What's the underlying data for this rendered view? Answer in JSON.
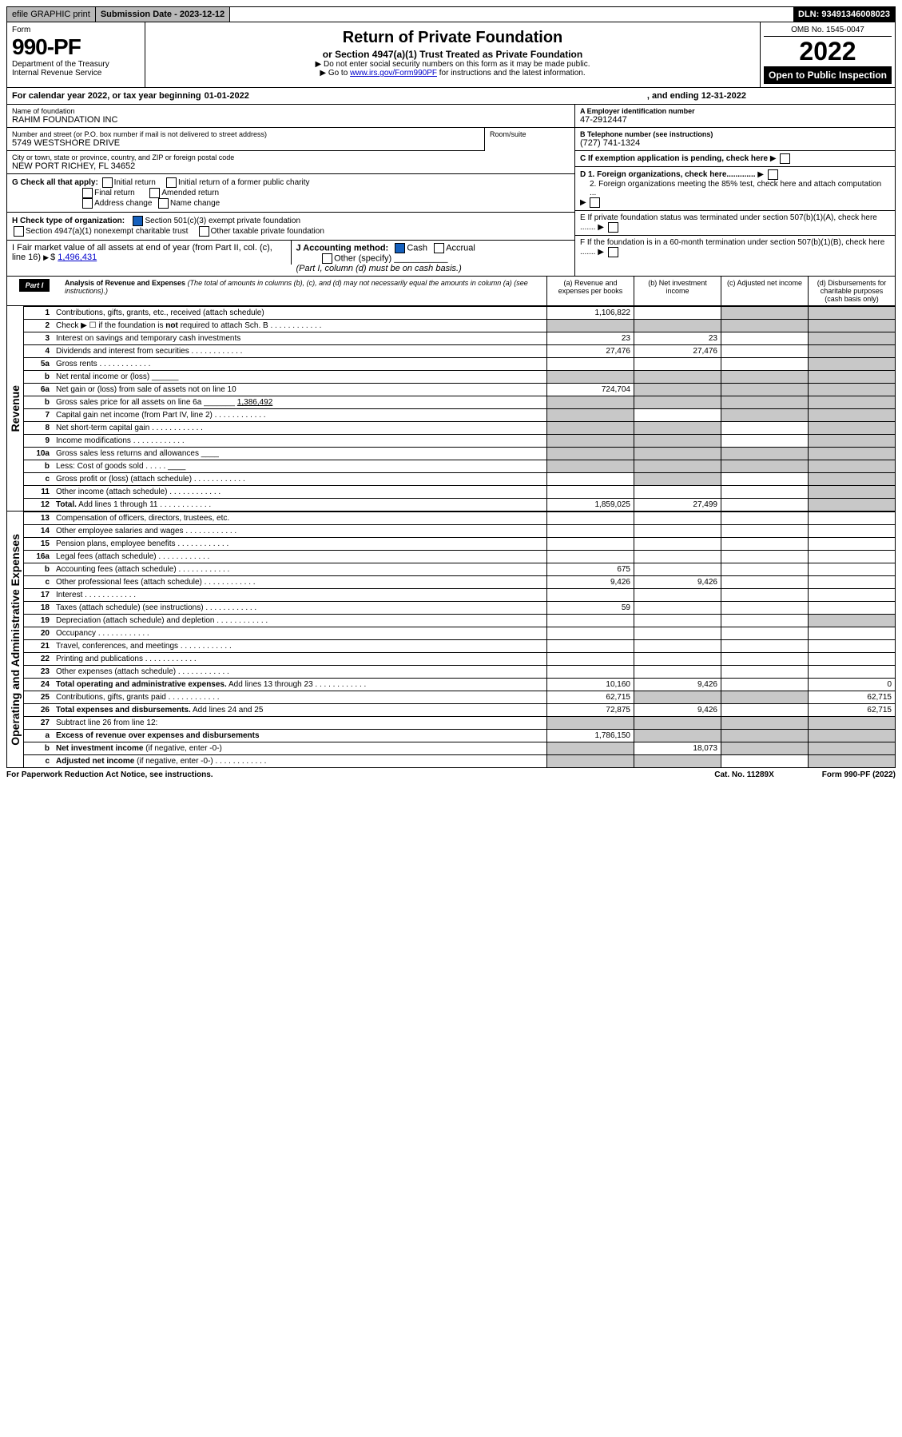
{
  "top": {
    "efile": "efile GRAPHIC print",
    "sub_label": "Submission Date - 2023-12-12",
    "dln": "DLN: 93491346008023"
  },
  "header": {
    "form_word": "Form",
    "form_no": "990-PF",
    "dept": "Department of the Treasury",
    "irs": "Internal Revenue Service",
    "title": "Return of Private Foundation",
    "subtitle": "or Section 4947(a)(1) Trust Treated as Private Foundation",
    "note1": "▶ Do not enter social security numbers on this form as it may be made public.",
    "note2_pre": "▶ Go to ",
    "note2_link": "www.irs.gov/Form990PF",
    "note2_post": " for instructions and the latest information.",
    "omb": "OMB No. 1545-0047",
    "year": "2022",
    "open": "Open to Public Inspection"
  },
  "calyear": {
    "text": "For calendar year 2022, or tax year beginning ",
    "begin": "01-01-2022",
    "mid": ", and ending ",
    "end": "12-31-2022"
  },
  "entity": {
    "name_lbl": "Name of foundation",
    "name": "RAHIM FOUNDATION INC",
    "addr_lbl": "Number and street (or P.O. box number if mail is not delivered to street address)",
    "addr": "5749 WESTSHORE DRIVE",
    "room_lbl": "Room/suite",
    "room": "",
    "city_lbl": "City or town, state or province, country, and ZIP or foreign postal code",
    "city": "NEW PORT RICHEY, FL  34652",
    "ein_lbl": "A Employer identification number",
    "ein": "47-2912447",
    "tel_lbl": "B Telephone number (see instructions)",
    "tel": "(727) 741-1324",
    "c_lbl": "C If exemption application is pending, check here",
    "d1": "D 1. Foreign organizations, check here.............",
    "d2": "2. Foreign organizations meeting the 85% test, check here and attach computation ...",
    "e": "E  If private foundation status was terminated under section 507(b)(1)(A), check here .......",
    "f": "F  If the foundation is in a 60-month termination under section 507(b)(1)(B), check here ......."
  },
  "g": {
    "lbl": "G Check all that apply:",
    "o1": "Initial return",
    "o2": "Initial return of a former public charity",
    "o3": "Final return",
    "o4": "Amended return",
    "o5": "Address change",
    "o6": "Name change"
  },
  "h": {
    "lbl": "H Check type of organization:",
    "o1": "Section 501(c)(3) exempt private foundation",
    "o2": "Section 4947(a)(1) nonexempt charitable trust",
    "o3": "Other taxable private foundation"
  },
  "i": {
    "lbl": "I Fair market value of all assets at end of year (from Part II, col. (c), line 16)",
    "val": "1,496,431"
  },
  "j": {
    "lbl": "J Accounting method:",
    "o1": "Cash",
    "o2": "Accrual",
    "o3": "Other (specify)",
    "note": "(Part I, column (d) must be on cash basis.)"
  },
  "part1": {
    "hdr": "Part I",
    "title": "Analysis of Revenue and Expenses",
    "title_note": " (The total of amounts in columns (b), (c), and (d) may not necessarily equal the amounts in column (a) (see instructions).)",
    "col_a": "(a) Revenue and expenses per books",
    "col_b": "(b) Net investment income",
    "col_c": "(c) Adjusted net income",
    "col_d": "(d) Disbursements for charitable purposes (cash basis only)"
  },
  "side_rev": "Revenue",
  "side_exp": "Operating and Administrative Expenses",
  "rows": [
    {
      "n": "1",
      "t": "Contributions, gifts, grants, etc., received (attach schedule)",
      "a": "1,106,822",
      "b": "",
      "c": "s",
      "d": "s"
    },
    {
      "n": "2",
      "t": "Check ▶ ☐ if the foundation is <b>not</b> required to attach Sch. B",
      "a": "s",
      "b": "s",
      "c": "s",
      "d": "s",
      "dotted": true
    },
    {
      "n": "3",
      "t": "Interest on savings and temporary cash investments",
      "a": "23",
      "b": "23",
      "c": "",
      "d": "s"
    },
    {
      "n": "4",
      "t": "Dividends and interest from securities",
      "a": "27,476",
      "b": "27,476",
      "c": "",
      "d": "s",
      "dotted": true
    },
    {
      "n": "5a",
      "t": "Gross rents",
      "a": "",
      "b": "",
      "c": "",
      "d": "s",
      "dotted": true
    },
    {
      "n": "b",
      "t": "Net rental income or (loss) ______",
      "a": "s",
      "b": "s",
      "c": "s",
      "d": "s"
    },
    {
      "n": "6a",
      "t": "Net gain or (loss) from sale of assets not on line 10",
      "a": "724,704",
      "b": "s",
      "c": "s",
      "d": "s"
    },
    {
      "n": "b",
      "t": "Gross sales price for all assets on line 6a _______ <u>1,386,492</u>",
      "a": "s",
      "b": "s",
      "c": "s",
      "d": "s"
    },
    {
      "n": "7",
      "t": "Capital gain net income (from Part IV, line 2)",
      "a": "s",
      "b": "",
      "c": "s",
      "d": "s",
      "dotted": true
    },
    {
      "n": "8",
      "t": "Net short-term capital gain",
      "a": "s",
      "b": "s",
      "c": "",
      "d": "s",
      "dotted": true
    },
    {
      "n": "9",
      "t": "Income modifications",
      "a": "s",
      "b": "s",
      "c": "",
      "d": "s",
      "dotted": true
    },
    {
      "n": "10a",
      "t": "Gross sales less returns and allowances ____",
      "a": "s",
      "b": "s",
      "c": "s",
      "d": "s"
    },
    {
      "n": "b",
      "t": "Less: Cost of goods sold    .  .  .  .  . ____",
      "a": "s",
      "b": "s",
      "c": "s",
      "d": "s"
    },
    {
      "n": "c",
      "t": "Gross profit or (loss) (attach schedule)",
      "a": "",
      "b": "s",
      "c": "",
      "d": "s",
      "dotted": true
    },
    {
      "n": "11",
      "t": "Other income (attach schedule)",
      "a": "",
      "b": "",
      "c": "",
      "d": "s",
      "dotted": true
    },
    {
      "n": "12",
      "t": "<b>Total.</b> Add lines 1 through 11",
      "a": "1,859,025",
      "b": "27,499",
      "c": "",
      "d": "s",
      "dotted": true
    }
  ],
  "exp_rows": [
    {
      "n": "13",
      "t": "Compensation of officers, directors, trustees, etc.",
      "a": "",
      "b": "",
      "c": "",
      "d": ""
    },
    {
      "n": "14",
      "t": "Other employee salaries and wages",
      "a": "",
      "b": "",
      "c": "",
      "d": "",
      "dotted": true
    },
    {
      "n": "15",
      "t": "Pension plans, employee benefits",
      "a": "",
      "b": "",
      "c": "",
      "d": "",
      "dotted": true
    },
    {
      "n": "16a",
      "t": "Legal fees (attach schedule)",
      "a": "",
      "b": "",
      "c": "",
      "d": "",
      "dotted": true
    },
    {
      "n": "b",
      "t": "Accounting fees (attach schedule)",
      "a": "675",
      "b": "",
      "c": "",
      "d": "",
      "dotted": true
    },
    {
      "n": "c",
      "t": "Other professional fees (attach schedule)",
      "a": "9,426",
      "b": "9,426",
      "c": "",
      "d": "",
      "dotted": true
    },
    {
      "n": "17",
      "t": "Interest",
      "a": "",
      "b": "",
      "c": "",
      "d": "",
      "dotted": true
    },
    {
      "n": "18",
      "t": "Taxes (attach schedule) (see instructions)",
      "a": "59",
      "b": "",
      "c": "",
      "d": "",
      "dotted": true
    },
    {
      "n": "19",
      "t": "Depreciation (attach schedule) and depletion",
      "a": "",
      "b": "",
      "c": "",
      "d": "s",
      "dotted": true
    },
    {
      "n": "20",
      "t": "Occupancy",
      "a": "",
      "b": "",
      "c": "",
      "d": "",
      "dotted": true
    },
    {
      "n": "21",
      "t": "Travel, conferences, and meetings",
      "a": "",
      "b": "",
      "c": "",
      "d": "",
      "dotted": true
    },
    {
      "n": "22",
      "t": "Printing and publications",
      "a": "",
      "b": "",
      "c": "",
      "d": "",
      "dotted": true
    },
    {
      "n": "23",
      "t": "Other expenses (attach schedule)",
      "a": "",
      "b": "",
      "c": "",
      "d": "",
      "dotted": true
    },
    {
      "n": "24",
      "t": "<b>Total operating and administrative expenses.</b> Add lines 13 through 23",
      "a": "10,160",
      "b": "9,426",
      "c": "",
      "d": "0",
      "dotted": true
    },
    {
      "n": "25",
      "t": "Contributions, gifts, grants paid",
      "a": "62,715",
      "b": "s",
      "c": "s",
      "d": "62,715",
      "dotted": true
    },
    {
      "n": "26",
      "t": "<b>Total expenses and disbursements.</b> Add lines 24 and 25",
      "a": "72,875",
      "b": "9,426",
      "c": "",
      "d": "62,715"
    },
    {
      "n": "27",
      "t": "Subtract line 26 from line 12:",
      "a": "s",
      "b": "s",
      "c": "s",
      "d": "s"
    },
    {
      "n": "a",
      "t": "<b>Excess of revenue over expenses and disbursements</b>",
      "a": "1,786,150",
      "b": "s",
      "c": "s",
      "d": "s"
    },
    {
      "n": "b",
      "t": "<b>Net investment income</b> (if negative, enter -0-)",
      "a": "s",
      "b": "18,073",
      "c": "s",
      "d": "s"
    },
    {
      "n": "c",
      "t": "<b>Adjusted net income</b> (if negative, enter -0-)",
      "a": "s",
      "b": "s",
      "c": "",
      "d": "s",
      "dotted": true
    }
  ],
  "footer": {
    "l": "For Paperwork Reduction Act Notice, see instructions.",
    "m": "Cat. No. 11289X",
    "r": "Form 990-PF (2022)"
  }
}
